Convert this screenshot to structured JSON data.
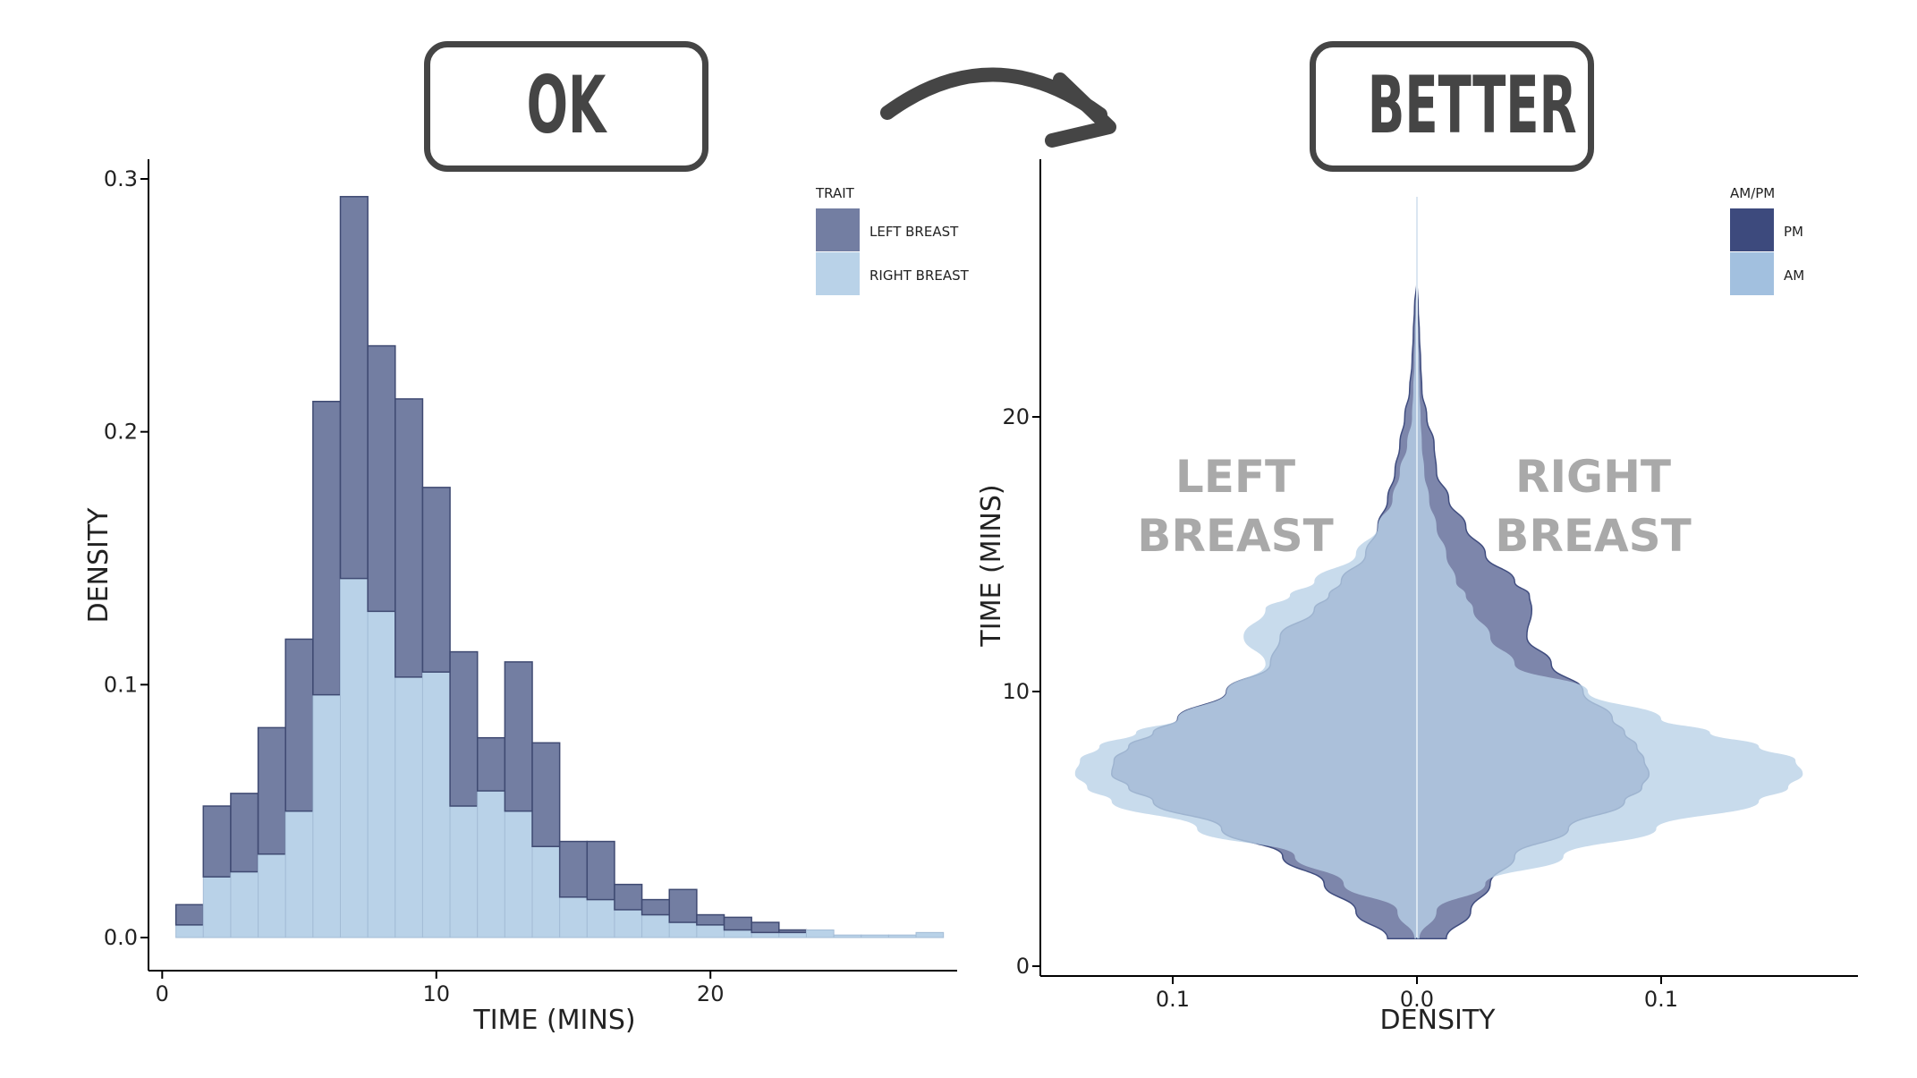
{
  "headers": {
    "ok": "OK",
    "better": "BETTER"
  },
  "colors": {
    "left_breast": "#737ea2",
    "right_breast": "#b9d2e8",
    "pm": "#3d4a7d",
    "am": "#a2c0df",
    "pm_fill": "#7b84aa",
    "am_fill": "#b9d1e7",
    "overlap": "#92acc8",
    "axis": "#000000",
    "arrow": "#454545",
    "annotation": "#a9a9a9"
  },
  "chart_data": [
    {
      "type": "bar",
      "subtype": "stacked-histogram",
      "xlabel": "TIME (MINS)",
      "ylabel": "DENSITY",
      "xlim": [
        -0.5,
        29
      ],
      "ylim": [
        0,
        0.3
      ],
      "xticks": [
        "0",
        "10",
        "20"
      ],
      "xtick_values": [
        0,
        10,
        20
      ],
      "yticks": [
        "0.0",
        "0.1",
        "0.2",
        "0.3"
      ],
      "ytick_values": [
        0,
        0.1,
        0.2,
        0.3
      ],
      "bin_width": 1,
      "legend_title": "TRAIT",
      "legend_position": "top-right",
      "x": [
        1,
        2,
        3,
        4,
        5,
        6,
        7,
        8,
        9,
        10,
        11,
        12,
        13,
        14,
        15,
        16,
        17,
        18,
        19,
        20,
        21,
        22,
        23,
        24,
        25,
        26,
        27,
        28
      ],
      "series": [
        {
          "name": "RIGHT BREAST",
          "color_key": "right_breast",
          "values": [
            0.005,
            0.024,
            0.026,
            0.033,
            0.05,
            0.096,
            0.142,
            0.129,
            0.103,
            0.105,
            0.052,
            0.058,
            0.05,
            0.036,
            0.016,
            0.015,
            0.011,
            0.009,
            0.006,
            0.005,
            0.003,
            0.002,
            0.002,
            0.003,
            0.001,
            0.001,
            0.001,
            0.002
          ]
        },
        {
          "name": "LEFT BREAST",
          "color_key": "left_breast",
          "values": [
            0.008,
            0.028,
            0.031,
            0.05,
            0.068,
            0.116,
            0.151,
            0.105,
            0.11,
            0.073,
            0.061,
            0.021,
            0.059,
            0.041,
            0.022,
            0.023,
            0.01,
            0.006,
            0.013,
            0.004,
            0.005,
            0.004,
            0.001,
            0.0,
            0.0,
            0.0,
            0.0,
            0.0
          ]
        }
      ]
    },
    {
      "type": "area",
      "subtype": "split-violin",
      "xlabel": "DENSITY",
      "ylabel": "TIME (MINS)",
      "xlim": [
        -0.15,
        0.16
      ],
      "ylim": [
        -0.2,
        29
      ],
      "xticks": [
        "0.1",
        "0.0",
        "0.1"
      ],
      "xtick_values": [
        -0.1,
        0.0,
        0.1
      ],
      "yticks": [
        "0",
        "10",
        "20"
      ],
      "ytick_values": [
        0,
        10,
        20
      ],
      "legend_title": "AM/PM",
      "legend_position": "top-right",
      "annotations": [
        {
          "lines": [
            "LEFT",
            "BREAST"
          ],
          "side": "left"
        },
        {
          "lines": [
            "RIGHT",
            "BREAST"
          ],
          "side": "right"
        }
      ],
      "y": [
        1,
        2,
        3,
        4,
        5,
        6,
        6.5,
        7,
        7.5,
        8,
        8.5,
        9,
        10,
        11,
        12,
        13,
        13.5,
        14,
        15,
        16,
        17,
        18,
        19,
        20,
        21,
        22,
        23,
        24,
        25
      ],
      "series": [
        {
          "name": "PM",
          "color_key": "pm_fill",
          "left": [
            0.012,
            0.025,
            0.038,
            0.055,
            0.08,
            0.108,
            0.118,
            0.125,
            0.124,
            0.118,
            0.108,
            0.098,
            0.078,
            0.06,
            0.056,
            0.042,
            0.036,
            0.031,
            0.021,
            0.016,
            0.012,
            0.009,
            0.007,
            0.005,
            0.003,
            0.002,
            0.0015,
            0.001,
            0.0
          ],
          "right": [
            0.012,
            0.022,
            0.03,
            0.04,
            0.062,
            0.085,
            0.092,
            0.095,
            0.093,
            0.09,
            0.085,
            0.08,
            0.068,
            0.055,
            0.045,
            0.047,
            0.046,
            0.04,
            0.028,
            0.02,
            0.013,
            0.008,
            0.007,
            0.004,
            0.002,
            0.0015,
            0.001,
            0.0005,
            0.0
          ]
        },
        {
          "name": "AM",
          "color_key": "am_fill",
          "left": [
            0.001,
            0.008,
            0.03,
            0.05,
            0.09,
            0.125,
            0.135,
            0.14,
            0.138,
            0.13,
            0.115,
            0.098,
            0.078,
            0.062,
            0.071,
            0.062,
            0.052,
            0.042,
            0.025,
            0.016,
            0.01,
            0.007,
            0.004,
            0.002,
            0.0015,
            0.001,
            0.0008,
            0.0005,
            0.0
          ],
          "right": [
            0.001,
            0.008,
            0.028,
            0.06,
            0.098,
            0.14,
            0.152,
            0.158,
            0.155,
            0.14,
            0.12,
            0.1,
            0.07,
            0.04,
            0.03,
            0.023,
            0.02,
            0.016,
            0.012,
            0.008,
            0.005,
            0.003,
            0.002,
            0.0015,
            0.001,
            0.0008,
            0.0005,
            0.0003,
            0.0
          ]
        }
      ]
    }
  ]
}
